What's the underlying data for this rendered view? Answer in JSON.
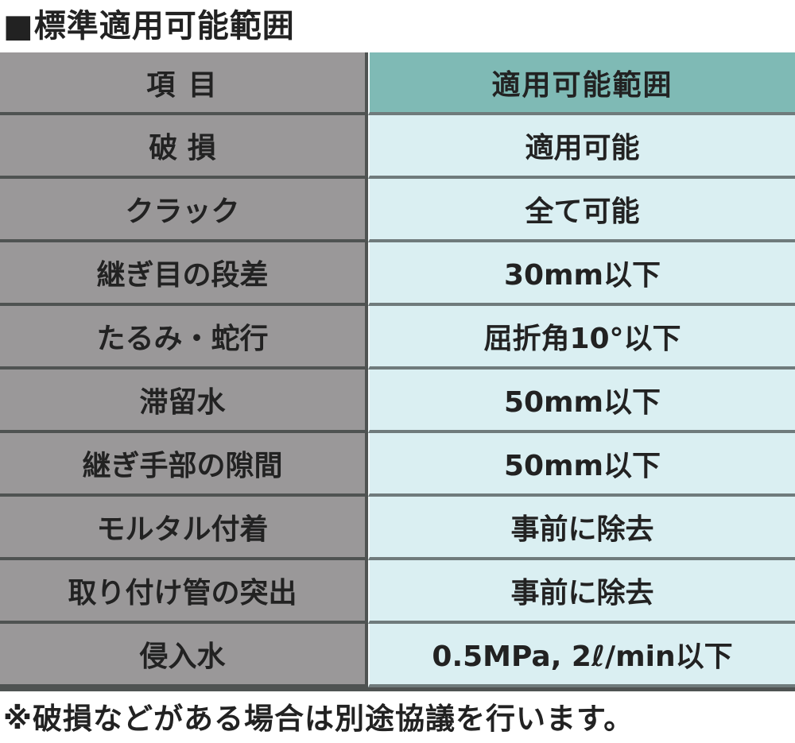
{
  "title": "■標準適用可能範囲",
  "table": {
    "header": {
      "item": "項 目",
      "range": "適用可能範囲"
    },
    "rows": [
      {
        "item": "破 損",
        "range": "適用可能"
      },
      {
        "item": "クラック",
        "range": "全て可能"
      },
      {
        "item": "継ぎ目の段差",
        "range": "30mm以下"
      },
      {
        "item": "たるみ・蛇行",
        "range": "屈折角10°以下"
      },
      {
        "item": "滞留水",
        "range": "50mm以下"
      },
      {
        "item": "継ぎ手部の隙間",
        "range": "50mm以下"
      },
      {
        "item": "モルタル付着",
        "range": "事前に除去"
      },
      {
        "item": "取り付け管の突出",
        "range": "事前に除去"
      },
      {
        "item": "侵入水",
        "range": "0.5MPa, 2ℓ/min以下"
      }
    ]
  },
  "colors": {
    "item_bg": "#9a9899",
    "header_bg": "#7fbab5",
    "cell_bg": "#daeff2",
    "border": "#4f5352"
  },
  "note": "※破損などがある場合は別途協議を行います。"
}
